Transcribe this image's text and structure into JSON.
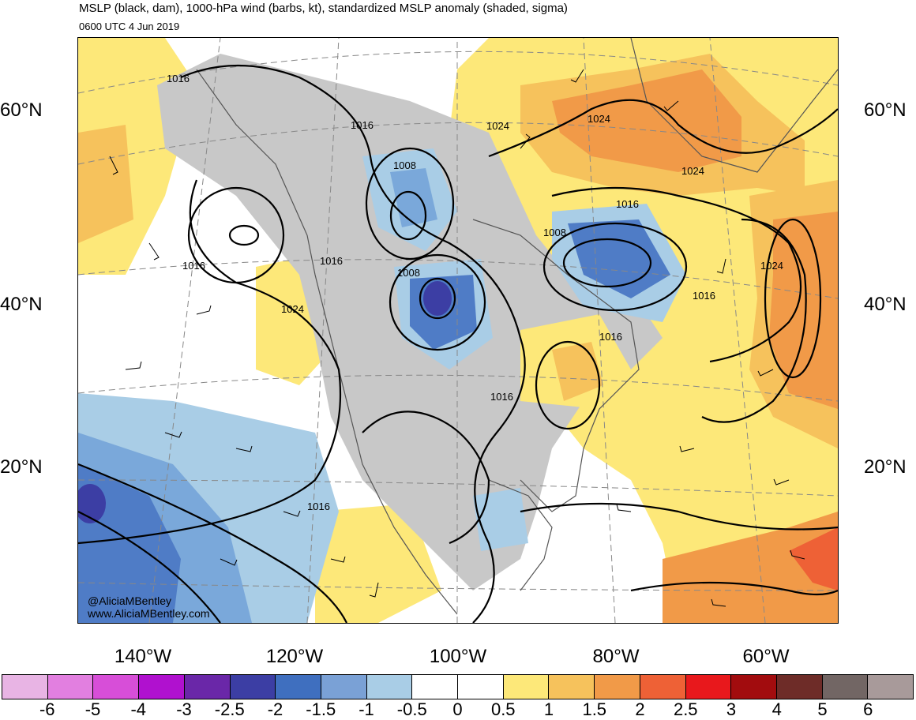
{
  "header": {
    "title": "MSLP (black, dam), 1000-hPa wind (barbs, kt), standardized MSLP anomaly (shaded, sigma)",
    "subtitle": "0600 UTC 4 Jun 2019"
  },
  "map": {
    "lat_labels": [
      "60°N",
      "40°N",
      "20°N"
    ],
    "lon_labels": [
      "140°W",
      "120°W",
      "100°W",
      "80°W",
      "60°W"
    ],
    "isobar_labels": [
      "1016",
      "1016",
      "1016",
      "1016",
      "1016",
      "1016",
      "1016",
      "1016",
      "1016",
      "1024",
      "1024",
      "1024",
      "1024",
      "1024",
      "1008",
      "1008",
      "1008"
    ],
    "credit_handle": "@AliciaMBentley",
    "credit_site": "www.AliciaMBentley.com",
    "colors": {
      "land_negative": "#c8c8c8",
      "positive_0_5": "#fde879",
      "positive_1": "#f6c25c",
      "positive_1_5": "#f19a48",
      "positive_2": "#ee6136",
      "negative_0_5": "#a9cde6",
      "negative_1": "#7aa8da",
      "negative_1_5": "#4f7cc6",
      "negative_2": "#3c3ea4"
    }
  },
  "colorbar": {
    "colors": [
      "#e8b4e4",
      "#e27fe0",
      "#d74ed8",
      "#b011cf",
      "#6a27a8",
      "#3c3ea4",
      "#3f6fbf",
      "#7aa1d6",
      "#a9cde6",
      "#ffffff",
      "#ffffff",
      "#fde879",
      "#f6c25c",
      "#f19a48",
      "#ee6136",
      "#e8181c",
      "#a20c0e",
      "#6e2c28",
      "#726664",
      "#a89a9a"
    ],
    "labels": [
      "-6",
      "-5",
      "-4",
      "-3",
      "-2.5",
      "-2",
      "-1.5",
      "-1",
      "-0.5",
      "0",
      "0.5",
      "1",
      "1.5",
      "2",
      "2.5",
      "3",
      "4",
      "5",
      "6"
    ]
  }
}
